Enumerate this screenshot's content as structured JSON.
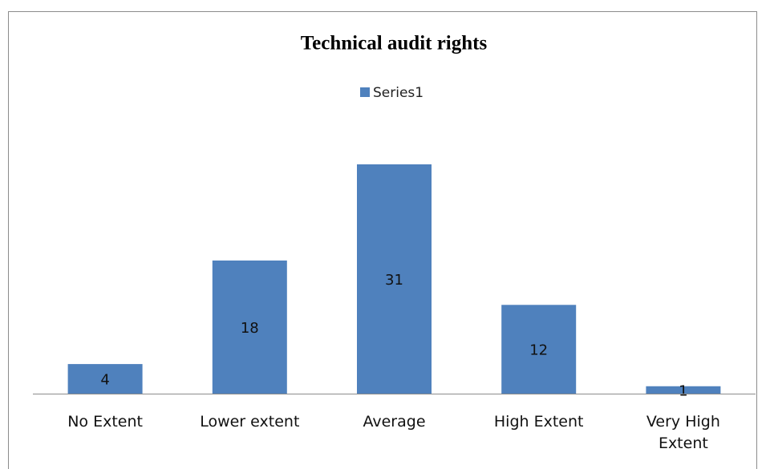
{
  "chart_data": {
    "type": "bar",
    "title": "Technical audit rights",
    "categories": [
      "No Extent",
      "Lower extent",
      "Average",
      "High Extent",
      "Very High Extent"
    ],
    "series": [
      {
        "name": "Series1",
        "color": "#4f81bd",
        "values": [
          4,
          18,
          31,
          12,
          1
        ]
      }
    ],
    "legend": "top"
  }
}
